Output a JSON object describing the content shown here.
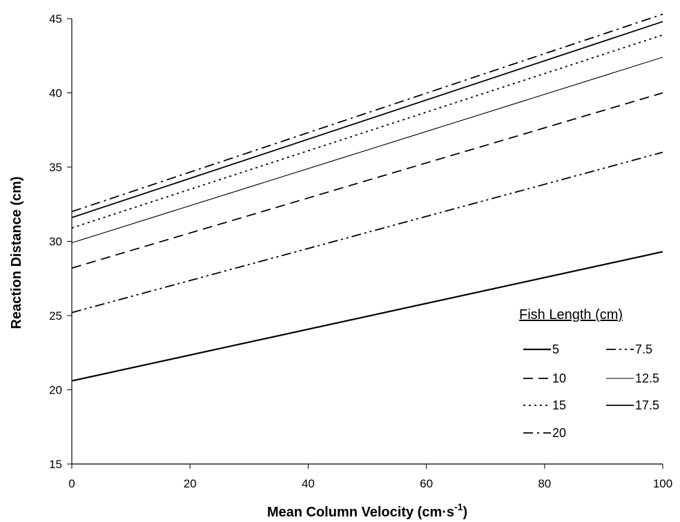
{
  "chart_data": {
    "type": "line",
    "xlabel": "Mean Column Velocity (cm·s",
    "xlabel_sup": "-1",
    "xlabel_end": ")",
    "ylabel": "Reaction Distance (cm)",
    "xlim": [
      0,
      100
    ],
    "ylim": [
      15,
      45
    ],
    "x_ticks": [
      0,
      20,
      40,
      60,
      80,
      100
    ],
    "y_ticks": [
      15,
      20,
      25,
      30,
      35,
      40,
      45
    ],
    "grid": false,
    "legend": {
      "title": "Fish Length (cm)",
      "placement": "bottom-right",
      "columns": 2
    },
    "series": [
      {
        "name": "5",
        "x": [
          0,
          100
        ],
        "y": [
          20.6,
          29.3
        ],
        "dash": "solid",
        "weight": "bold"
      },
      {
        "name": "7.5",
        "x": [
          0,
          100
        ],
        "y": [
          25.2,
          36.0
        ],
        "dash": "dash-dot-dot",
        "weight": "normal"
      },
      {
        "name": "10",
        "x": [
          0,
          100
        ],
        "y": [
          28.2,
          40.0
        ],
        "dash": "dashed",
        "weight": "normal"
      },
      {
        "name": "12.5",
        "x": [
          0,
          100
        ],
        "y": [
          29.9,
          42.4
        ],
        "dash": "solid",
        "weight": "thin"
      },
      {
        "name": "15",
        "x": [
          0,
          100
        ],
        "y": [
          30.9,
          43.9
        ],
        "dash": "dotted",
        "weight": "normal"
      },
      {
        "name": "17.5",
        "x": [
          0,
          100
        ],
        "y": [
          31.6,
          44.8
        ],
        "dash": "solid",
        "weight": "normal"
      },
      {
        "name": "20",
        "x": [
          0,
          100
        ],
        "y": [
          32.0,
          45.3
        ],
        "dash": "dash-dot",
        "weight": "normal"
      }
    ]
  }
}
